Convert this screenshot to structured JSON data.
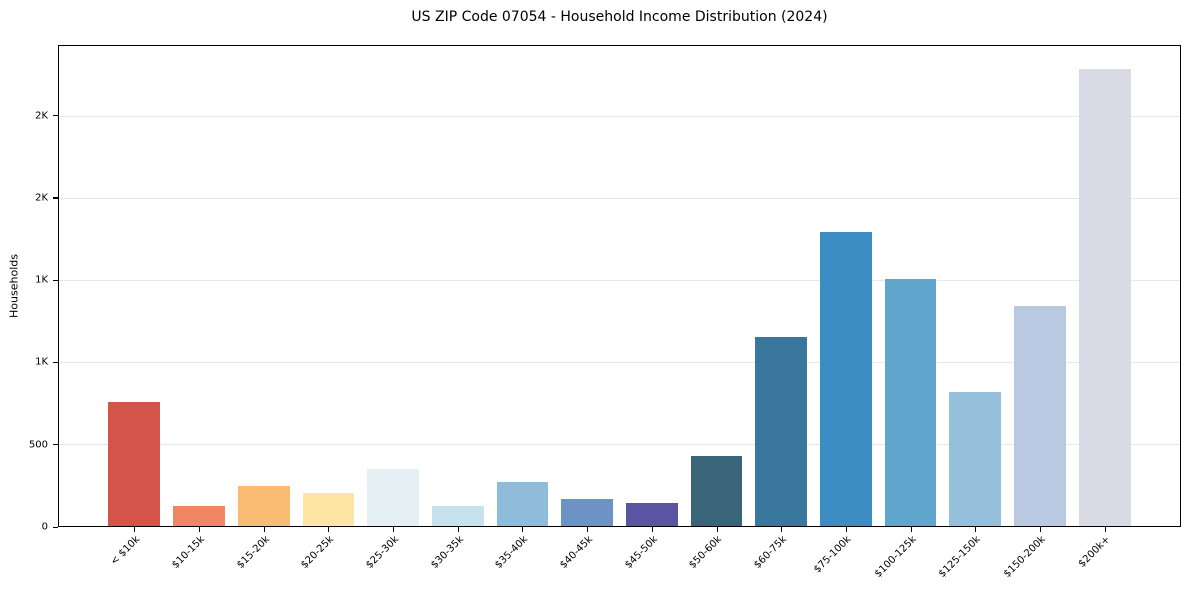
{
  "chart_data": {
    "type": "bar",
    "title": "US ZIP Code 07054 - Household Income Distribution (2024)",
    "xlabel": "",
    "ylabel": "Households",
    "ylim": [
      0,
      2930
    ],
    "grid": true,
    "legend": false,
    "background_color": "#ffffff",
    "grid_color": "#e7e7e7",
    "spine_color": "#000000",
    "categories": [
      "< $10k",
      "$10-15k",
      "$15-20k",
      "$20-25k",
      "$25-30k",
      "$30-35k",
      "$35-40k",
      "$40-45k",
      "$45-50k",
      "$50-60k",
      "$60-75k",
      "$75-100k",
      "$100-125k",
      "$125-150k",
      "$150-200k",
      "$200k+"
    ],
    "values": [
      760,
      120,
      245,
      200,
      350,
      125,
      270,
      165,
      140,
      425,
      1155,
      1795,
      1505,
      820,
      1340,
      2790
    ],
    "bar_colors": [
      "#d5544a",
      "#f08663",
      "#fabb72",
      "#fde5a3",
      "#e4f0f4",
      "#c6e2eb",
      "#8fbcda",
      "#6d92c5",
      "#5955a3",
      "#3a6477",
      "#3a779c",
      "#3b8dc4",
      "#60a6cc",
      "#96bfdc",
      "#b9c9e1",
      "#d8dae6"
    ],
    "yticks": [
      {
        "value": 0,
        "label": "0"
      },
      {
        "value": 500,
        "label": "500"
      },
      {
        "value": 1000,
        "label": "1K"
      },
      {
        "value": 1500,
        "label": "1K"
      },
      {
        "value": 2000,
        "label": "2K"
      },
      {
        "value": 2500,
        "label": "2K"
      }
    ]
  }
}
